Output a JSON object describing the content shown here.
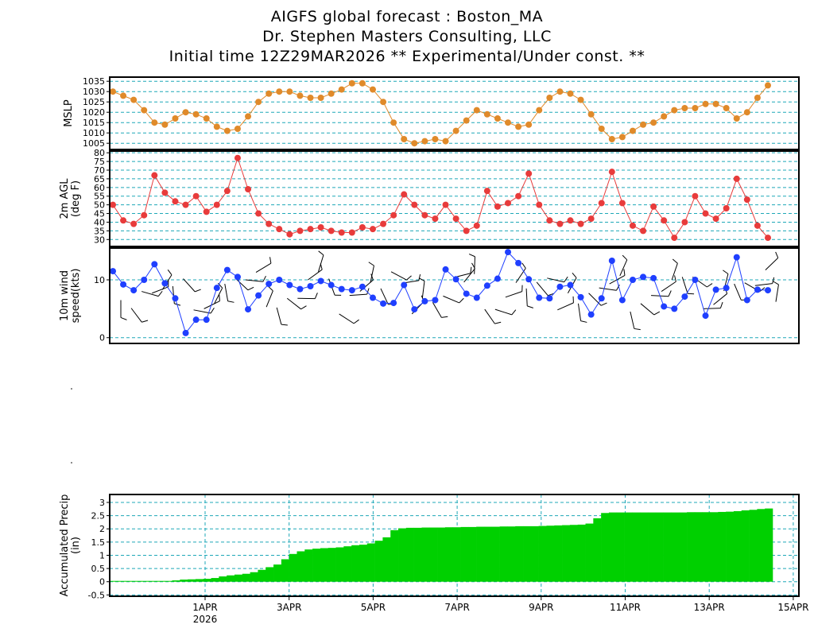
{
  "header": {
    "title_line1": "AIGFS global forecast : Boston_MA",
    "title_line2": "Dr. Stephen Masters Consulting, LLC",
    "title_line3": "Initial time 12Z29MAR2026  ** Experimental/Under const. **"
  },
  "colors": {
    "mslp": "#e08a2a",
    "temp": "#e83b3b",
    "wind": "#1f3fff",
    "precip": "#00d000",
    "grid": "#1fa8b8"
  },
  "chart_data": [
    {
      "type": "line",
      "ylabel": "MSLP",
      "ylim": [
        1002,
        1037
      ],
      "yticks": [
        1005,
        1010,
        1015,
        1020,
        1025,
        1030,
        1035
      ],
      "grid": true,
      "values": [
        1030,
        1028,
        1026,
        1021,
        1015,
        1014,
        1017,
        1020,
        1019,
        1017,
        1013,
        1011,
        1012,
        1018,
        1025,
        1029,
        1030,
        1030,
        1028,
        1027,
        1027,
        1029,
        1031,
        1034,
        1034,
        1031,
        1025,
        1015,
        1007,
        1005,
        1006,
        1007,
        1006,
        1011,
        1016,
        1021,
        1019,
        1017,
        1015,
        1013,
        1014,
        1021,
        1027,
        1030,
        1029,
        1026,
        1019,
        1012,
        1007,
        1008,
        1011,
        1014,
        1015,
        1018,
        1021,
        1022,
        1022,
        1024,
        1024,
        1022,
        1017,
        1020,
        1027,
        1033
      ]
    },
    {
      "type": "line",
      "ylabel": "2m AGL (deg F)",
      "ylim": [
        26,
        81
      ],
      "yticks": [
        30,
        35,
        40,
        45,
        50,
        55,
        60,
        65,
        70,
        75,
        80
      ],
      "grid": true,
      "values": [
        50,
        41,
        39,
        44,
        67,
        57,
        52,
        50,
        55,
        46,
        50,
        58,
        77,
        59,
        45,
        39,
        36,
        33,
        35,
        36,
        37,
        35,
        34,
        34,
        37,
        36,
        39,
        44,
        56,
        50,
        44,
        42,
        50,
        42,
        35,
        38,
        58,
        49,
        51,
        55,
        68,
        50,
        41,
        39,
        41,
        39,
        42,
        51,
        69,
        51,
        38,
        35,
        49,
        41,
        31,
        40,
        55,
        45,
        42,
        48,
        65,
        53,
        38,
        31
      ]
    },
    {
      "type": "line",
      "ylabel": "10m wind speed(kts)",
      "ylim": [
        -1,
        15.5
      ],
      "yticks": [
        0,
        10
      ],
      "grid": true,
      "values": [
        11.5,
        9.2,
        8.2,
        10,
        12.7,
        9.4,
        6.8,
        0.8,
        3.1,
        3.1,
        8.6,
        11.7,
        10.5,
        4.9,
        7.3,
        9.3,
        10,
        9.1,
        8.4,
        8.9,
        9.8,
        9.1,
        8.4,
        8.2,
        8.8,
        6.9,
        5.9,
        6,
        9.1,
        4.9,
        6.3,
        6.5,
        11.8,
        10.1,
        7.6,
        6.9,
        9,
        10.2,
        14.8,
        12.9,
        10.1,
        6.9,
        6.8,
        8.8,
        9.1,
        7,
        4,
        6.8,
        13.3,
        6.5,
        10,
        10.5,
        10.3,
        5.4,
        5,
        7.1,
        10,
        3.8,
        8.3,
        8.6,
        13.9,
        6.5,
        8.3,
        8.2
      ]
    },
    {
      "type": "area",
      "ylabel": "Accumulated Precip (in)",
      "ylim": [
        -0.55,
        3.3
      ],
      "yticks": [
        -0.5,
        0,
        0.5,
        1,
        1.5,
        2,
        2.5,
        3
      ],
      "grid": true,
      "xtick_labels": [
        "1APR",
        "3APR",
        "5APR",
        "7APR",
        "9APR",
        "11APR",
        "13APR",
        "15APR"
      ],
      "x_year_label": "2026",
      "values": [
        0.03,
        0.03,
        0.03,
        0.03,
        0.03,
        0.03,
        0.03,
        0.03,
        0.05,
        0.08,
        0.09,
        0.1,
        0.11,
        0.14,
        0.2,
        0.24,
        0.27,
        0.3,
        0.36,
        0.45,
        0.55,
        0.65,
        0.85,
        1.05,
        1.15,
        1.22,
        1.25,
        1.27,
        1.28,
        1.3,
        1.34,
        1.38,
        1.4,
        1.45,
        1.55,
        1.68,
        1.95,
        2.02,
        2.04,
        2.04,
        2.05,
        2.05,
        2.05,
        2.06,
        2.06,
        2.07,
        2.07,
        2.08,
        2.08,
        2.08,
        2.09,
        2.09,
        2.1,
        2.1,
        2.1,
        2.11,
        2.12,
        2.13,
        2.14,
        2.15,
        2.16,
        2.2,
        2.4,
        2.6,
        2.62,
        2.62,
        2.62,
        2.62,
        2.62,
        2.62,
        2.62,
        2.62,
        2.62,
        2.62,
        2.63,
        2.63,
        2.63,
        2.63,
        2.64,
        2.65,
        2.67,
        2.7,
        2.72,
        2.75,
        2.77
      ]
    }
  ]
}
